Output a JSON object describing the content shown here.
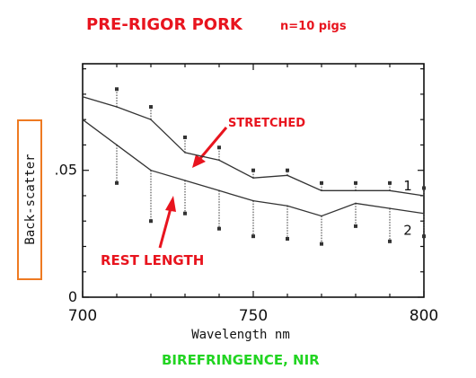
{
  "annotations": {
    "title": "PRE-RIGOR PORK",
    "title_note": "n=10 pigs",
    "stretched_label": "STRETCHED",
    "rest_label": "REST LENGTH",
    "footer_label": "BIREFRINGENCE, NIR"
  },
  "colors": {
    "axis": "#111111",
    "series": "#333333",
    "annotation_red": "#e8141e",
    "annotation_orange": "#ee7a22",
    "annotation_green": "#22d422"
  },
  "chart_data": {
    "type": "line",
    "xlabel": "Wavelength nm",
    "ylabel": "Back-scatter",
    "xlim": [
      700,
      800
    ],
    "ylim": [
      0,
      0.092
    ],
    "grid": false,
    "x_ticks": [
      {
        "value": 700,
        "label": "700"
      },
      {
        "value": 750,
        "label": "750"
      },
      {
        "value": 800,
        "label": "800"
      }
    ],
    "y_ticks": [
      {
        "value": 0,
        "label": "0"
      },
      {
        "value": 0.05,
        "label": ".05"
      }
    ],
    "series": [
      {
        "name": "1",
        "x": [
          700,
          710,
          720,
          730,
          740,
          750,
          760,
          770,
          780,
          790,
          800
        ],
        "y": [
          0.079,
          0.075,
          0.07,
          0.057,
          0.054,
          0.047,
          0.048,
          0.042,
          0.042,
          0.042,
          0.04
        ],
        "error_upper": [
          0.079,
          0.082,
          0.075,
          0.063,
          0.059,
          0.05,
          0.05,
          0.045,
          0.045,
          0.045,
          0.043
        ]
      },
      {
        "name": "2",
        "x": [
          700,
          710,
          720,
          730,
          740,
          750,
          760,
          770,
          780,
          790,
          800
        ],
        "y": [
          0.07,
          0.06,
          0.05,
          0.046,
          0.042,
          0.038,
          0.036,
          0.032,
          0.037,
          0.035,
          0.033
        ],
        "error_lower": [
          0.05,
          0.045,
          0.03,
          0.033,
          0.027,
          0.024,
          0.023,
          0.021,
          0.028,
          0.022,
          0.024
        ]
      }
    ]
  }
}
